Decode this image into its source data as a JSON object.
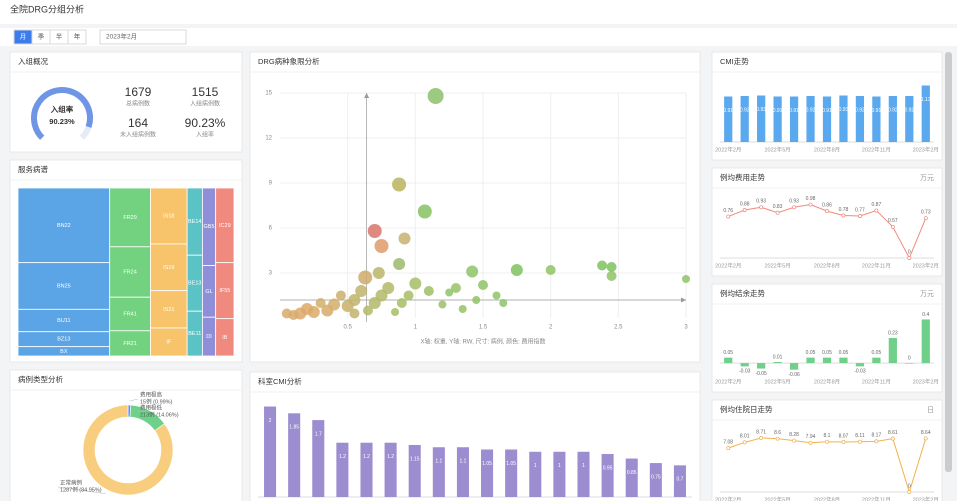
{
  "header": {
    "title": "全院DRG分组分析"
  },
  "toolbar": {
    "tabs": [
      "月",
      "季",
      "半",
      "年"
    ],
    "date": "2023年2月"
  },
  "overview": {
    "title": "入组概况",
    "gauge": {
      "label": "入组率",
      "value": 90.23,
      "value_label": "90.23%",
      "max": 100
    },
    "stats": [
      {
        "value": 1679,
        "label": "总病例数"
      },
      {
        "value": 1515,
        "label": "入组病例数"
      },
      {
        "value": 164,
        "label": "未入组病例数"
      },
      {
        "value": 90.23,
        "value_label": "90.23%",
        "label": "入组率"
      }
    ]
  },
  "chart_data": [
    {
      "type": "treemap",
      "title": "服务病谱",
      "groups": [
        {
          "color": "#5ba5e6",
          "items": [
            {
              "label": "BN22",
              "value": 40
            },
            {
              "label": "BN25",
              "value": 25
            },
            {
              "label": "BU11",
              "value": 12
            },
            {
              "label": "BZ13",
              "value": 8
            },
            {
              "label": "BX",
              "value": 5
            }
          ]
        },
        {
          "color": "#72d27f",
          "items": [
            {
              "label": "FR29",
              "value": 14
            },
            {
              "label": "FR24",
              "value": 12
            },
            {
              "label": "FR41",
              "value": 8
            },
            {
              "label": "FR21",
              "value": 6
            }
          ]
        },
        {
          "color": "#f7c36b",
          "items": [
            {
              "label": "IS18",
              "value": 12
            },
            {
              "label": "IS19",
              "value": 10
            },
            {
              "label": "IS21",
              "value": 8
            },
            {
              "label": "IF",
              "value": 6
            }
          ]
        },
        {
          "color": "#5bc2c6",
          "items": [
            {
              "label": "BE14",
              "value": 6
            },
            {
              "label": "BE13",
              "value": 5
            },
            {
              "label": "BE11",
              "value": 4
            }
          ]
        },
        {
          "color": "#8f8fd9",
          "items": [
            {
              "label": "GB5",
              "value": 6
            },
            {
              "label": "GL",
              "value": 4
            },
            {
              "label": "DI",
              "value": 3
            }
          ]
        },
        {
          "color": "#f08a7e",
          "items": [
            {
              "label": "IC29",
              "value": 8
            },
            {
              "label": "IF55",
              "value": 6
            },
            {
              "label": "IB",
              "value": 4
            }
          ]
        }
      ]
    },
    {
      "type": "pie",
      "title": "病例类型分析",
      "categories": [
        "费用极高",
        "费用极低",
        "正常病例"
      ],
      "values": [
        15,
        213,
        1287
      ],
      "value_labels": [
        "15例 (0.99%)",
        "213例 (14.06%)",
        "1287例 (84.95%)"
      ],
      "colors": [
        "#5b8ff9",
        "#6fd08a",
        "#f8cd7e"
      ]
    },
    {
      "type": "scatter",
      "title": "DRG病种象限分析",
      "caption": "X轴: 权重, Y轴: RW, 尺寸: 病例, 颜色: 费用指数",
      "xlim": [
        0,
        3
      ],
      "ylim": [
        0,
        15
      ],
      "xticks": [
        0.5,
        1,
        1.5,
        2,
        2.5,
        3
      ],
      "yticks": [
        3,
        6,
        9,
        12,
        15
      ],
      "reference_x": 0.64,
      "reference_y": 1.2,
      "x": [
        1.15,
        0.88,
        1.07,
        0.7,
        0.75,
        0.92,
        0.88,
        0.73,
        0.63,
        1.42,
        1.75,
        2.0,
        2.38,
        2.45,
        2.45,
        3.0,
        1.5,
        1.3,
        1.25,
        1.6,
        1.45,
        1.65,
        1.0,
        1.1,
        0.95,
        0.9,
        0.8,
        0.75,
        0.7,
        0.6,
        0.55,
        0.5,
        0.45,
        0.4,
        0.35,
        0.3,
        0.25,
        0.2,
        0.15,
        0.1,
        0.05,
        0.65,
        0.85,
        1.2,
        1.35,
        0.55
      ],
      "values": [
        14.8,
        8.9,
        7.1,
        5.8,
        4.8,
        5.3,
        3.6,
        3.0,
        2.7,
        3.1,
        3.2,
        3.2,
        3.5,
        3.4,
        2.8,
        2.6,
        2.2,
        2.0,
        1.7,
        1.5,
        1.2,
        1.0,
        2.3,
        1.8,
        1.5,
        1.0,
        2.0,
        1.5,
        1.0,
        1.8,
        1.2,
        0.8,
        1.5,
        0.9,
        0.5,
        1.0,
        0.4,
        0.6,
        0.3,
        0.2,
        0.3,
        0.5,
        0.4,
        0.9,
        0.6,
        0.3
      ],
      "sizes": [
        64,
        49,
        49,
        49,
        49,
        36,
        36,
        36,
        49,
        36,
        36,
        25,
        25,
        25,
        25,
        16,
        25,
        25,
        16,
        16,
        16,
        16,
        36,
        25,
        25,
        25,
        36,
        36,
        36,
        36,
        36,
        36,
        25,
        36,
        36,
        25,
        36,
        36,
        36,
        25,
        25,
        25,
        16,
        16,
        16,
        25
      ],
      "colors": [
        "#8cc06a",
        "#b9b45e",
        "#86c161",
        "#d9756a",
        "#e09a6a",
        "#c8b070",
        "#9cba6a",
        "#b8b56a",
        "#d0aa6a",
        "#8ec466",
        "#7fc25f",
        "#8ec466",
        "#7fc25f",
        "#7fc25f",
        "#8ec466",
        "#8ec466",
        "#8ec466",
        "#96c266",
        "#8ec466",
        "#8ec466",
        "#8ec466",
        "#8ec466",
        "#a6bd66",
        "#9cbf66",
        "#a6bd66",
        "#a6bd66",
        "#b4b86a",
        "#b4b86a",
        "#b4b86a",
        "#c0b46a",
        "#c0b46a",
        "#c8b06a",
        "#cdb06a",
        "#d2ae6a",
        "#d8aa6a",
        "#d2ae6a",
        "#dcaa6a",
        "#dcaa6a",
        "#dca86a",
        "#d8aa6a",
        "#d8aa6a",
        "#b4b86a",
        "#a6bd66",
        "#9cbf66",
        "#96c266",
        "#c0b46a"
      ]
    },
    {
      "type": "bar",
      "title": "科室CMI分析",
      "categories": [
        null,
        null,
        null,
        null,
        null,
        null,
        null,
        null,
        null,
        null,
        null,
        null,
        null,
        null,
        null,
        null,
        null,
        null
      ],
      "values": [
        2.0,
        1.85,
        1.7,
        1.2,
        1.2,
        1.2,
        1.15,
        1.1,
        1.1,
        1.05,
        1.05,
        1.0,
        1.0,
        1.0,
        0.95,
        0.85,
        0.75,
        0.7
      ],
      "ylim": [
        0,
        2.1
      ],
      "color": "#9b8dd0",
      "labels_inside": true
    },
    {
      "type": "bar",
      "title": "CMI走势",
      "categories": [
        "2022年2月",
        null,
        null,
        "2022年5月",
        null,
        null,
        "2022年8月",
        null,
        null,
        "2022年11月",
        null,
        null,
        "2023年2月"
      ],
      "values": [
        0.91,
        0.92,
        0.93,
        0.91,
        0.91,
        0.92,
        0.91,
        0.93,
        0.92,
        0.91,
        0.92,
        0.92,
        1.13
      ],
      "ylim": [
        0,
        1.2
      ],
      "color": "#5aa9ee",
      "labels_inside": true
    },
    {
      "type": "line",
      "title": "例均费用走势",
      "corner": "万元",
      "categories": [
        "2022年2月",
        null,
        null,
        "2022年5月",
        null,
        null,
        "2022年8月",
        null,
        null,
        "2022年11月",
        null,
        null,
        "2023年2月"
      ],
      "values": [
        0.76,
        0.88,
        0.93,
        0.83,
        0.93,
        0.98,
        0.86,
        0.78,
        0.77,
        0.87,
        0.57,
        0,
        0.73
      ],
      "ylim": [
        0,
        1.1
      ],
      "color": "#f08a7e"
    },
    {
      "type": "bar",
      "title": "例均结余走势",
      "corner": "万元",
      "categories": [
        "2022年2月",
        null,
        null,
        "2022年5月",
        null,
        null,
        "2022年8月",
        null,
        null,
        "2022年11月",
        null,
        null,
        "2023年2月"
      ],
      "values": [
        0.05,
        -0.03,
        -0.05,
        0.01,
        -0.06,
        0.05,
        0.05,
        0.05,
        -0.03,
        0.05,
        0.23,
        0,
        0.4
      ],
      "ylim": [
        -0.1,
        0.45
      ],
      "color": "#6fd08a"
    },
    {
      "type": "line",
      "title": "例均住院日走势",
      "corner": "日",
      "categories": [
        "2022年2月",
        null,
        null,
        "2022年5月",
        null,
        null,
        "2022年8月",
        null,
        null,
        "2022年11月",
        null,
        null,
        "2023年2月"
      ],
      "values": [
        7.08,
        8.01,
        8.71,
        8.6,
        8.28,
        7.94,
        8.1,
        8.07,
        8.11,
        8.17,
        8.61,
        0,
        8.64
      ],
      "ylim": [
        0,
        10
      ],
      "color": "#f2b24e"
    }
  ]
}
